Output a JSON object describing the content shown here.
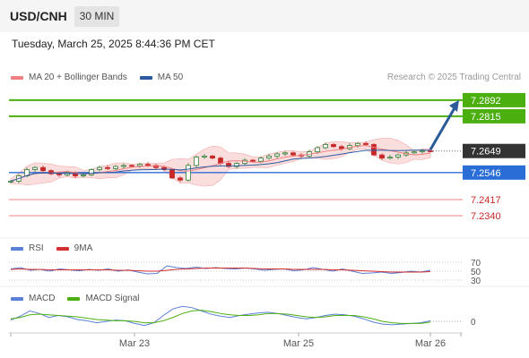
{
  "header": {
    "pair": "USD/CNH",
    "timeframe": "30 MIN"
  },
  "datetime": "Tuesday, March 25, 2025 8:44:36 PM CET",
  "legend": {
    "ma20_label": "MA 20 + Bollinger Bands",
    "ma50_label": "MA 50"
  },
  "credit": "Research © 2025 Trading Central",
  "rsi_panel": {
    "rsi_label": "RSI",
    "ma_label": "9MA"
  },
  "macd_panel": {
    "macd_label": "MACD",
    "signal_label": "MACD Signal"
  },
  "colors": {
    "up_candle": "#2e7d32",
    "down_candle": "#c62828",
    "bollinger_fill": "#f6c8c8",
    "ma20": "#f08080",
    "ma50": "#2c5aa0",
    "target": "#4caf10",
    "pivot": "#2b6dd6",
    "support": "#f08080",
    "arrow": "#2b5a9a",
    "last_price": "#333333",
    "rsi": "#5a7fd6",
    "rsi_ma": "#d32f2f",
    "macd": "#5a7fd6",
    "macd_signal": "#4caf10"
  },
  "chart_data": [
    {
      "type": "candlestick",
      "title": "USD/CNH 30 MIN",
      "y_range": [
        7.225,
        7.296
      ],
      "x_ticks": [
        "Mar 23",
        "Mar 25",
        "Mar 26"
      ],
      "price_levels": [
        {
          "label": "7.2892",
          "value": 7.2892,
          "kind": "target"
        },
        {
          "label": "7.2815",
          "value": 7.2815,
          "kind": "target"
        },
        {
          "label": "7.2649",
          "value": 7.2649,
          "kind": "last"
        },
        {
          "label": "7.2546",
          "value": 7.2546,
          "kind": "pivot"
        },
        {
          "label": "7.2417",
          "value": 7.2417,
          "kind": "support"
        },
        {
          "label": "7.2340",
          "value": 7.234,
          "kind": "support"
        }
      ],
      "arrow": {
        "from": 7.2655,
        "to": 7.2892
      },
      "close_path": [
        7.2505,
        7.253,
        7.256,
        7.257,
        7.2555,
        7.254,
        7.2535,
        7.2545,
        7.253,
        7.2535,
        7.256,
        7.257,
        7.2565,
        7.2575,
        7.258,
        7.2578,
        7.2585,
        7.258,
        7.257,
        7.256,
        7.252,
        7.251,
        7.258,
        7.262,
        7.2625,
        7.2615,
        7.259,
        7.2575,
        7.259,
        7.2605,
        7.26,
        7.2615,
        7.2625,
        7.2635,
        7.264,
        7.263,
        7.2625,
        7.2645,
        7.2665,
        7.268,
        7.267,
        7.266,
        7.2675,
        7.2685,
        7.268,
        7.263,
        7.2615,
        7.262,
        7.263,
        7.264,
        7.2645,
        7.265,
        7.2649
      ]
    },
    {
      "type": "line",
      "title": "RSI",
      "y_range": [
        20,
        80
      ],
      "y_ticks": [
        70,
        50,
        30
      ],
      "series": [
        {
          "name": "RSI",
          "values": [
            55,
            58,
            52,
            54,
            50,
            55,
            53,
            51,
            54,
            52,
            55,
            50,
            53,
            48,
            44,
            45,
            62,
            58,
            56,
            59,
            56,
            58,
            56,
            55,
            57,
            55,
            52,
            54,
            55,
            51,
            53,
            58,
            54,
            50,
            55,
            50,
            45,
            46,
            48,
            45,
            47,
            50,
            48,
            52
          ]
        },
        {
          "name": "9MA",
          "values": [
            54,
            55,
            54,
            54,
            53,
            53,
            53,
            53,
            53,
            53,
            53,
            52,
            52,
            51,
            50,
            50,
            52,
            54,
            55,
            56,
            57,
            57,
            57,
            57,
            57,
            56,
            55,
            55,
            55,
            54,
            54,
            54,
            54,
            53,
            53,
            52,
            51,
            50,
            49,
            48,
            48,
            48,
            48,
            49
          ]
        }
      ]
    },
    {
      "type": "line",
      "title": "MACD",
      "y_ticks": [
        0
      ],
      "series": [
        {
          "name": "MACD",
          "values": [
            0.2,
            0.8,
            1.6,
            1.2,
            0.6,
            0.9,
            0.7,
            0.3,
            0.1,
            -0.2,
            0.0,
            0.2,
            0.1,
            -0.3,
            -0.6,
            -0.2,
            0.9,
            1.9,
            2.3,
            2.1,
            1.6,
            1.1,
            0.8,
            0.6,
            0.9,
            1.1,
            1.3,
            1.4,
            1.2,
            0.9,
            0.6,
            0.4,
            0.6,
            0.9,
            1.1,
            1.0,
            0.8,
            0.4,
            -0.1,
            -0.4,
            -0.5,
            -0.4,
            -0.3,
            -0.2,
            0.1
          ]
        },
        {
          "name": "MACD Signal",
          "values": [
            0.4,
            0.6,
            1.0,
            1.1,
            1.0,
            0.9,
            0.8,
            0.7,
            0.5,
            0.3,
            0.2,
            0.1,
            0.1,
            0.0,
            -0.2,
            -0.2,
            0.1,
            0.6,
            1.2,
            1.6,
            1.7,
            1.5,
            1.2,
            1.0,
            0.9,
            0.9,
            1.0,
            1.2,
            1.2,
            1.1,
            0.9,
            0.7,
            0.6,
            0.7,
            0.9,
            0.9,
            0.9,
            0.7,
            0.4,
            0.0,
            -0.2,
            -0.3,
            -0.3,
            -0.3,
            -0.1
          ]
        }
      ]
    }
  ]
}
